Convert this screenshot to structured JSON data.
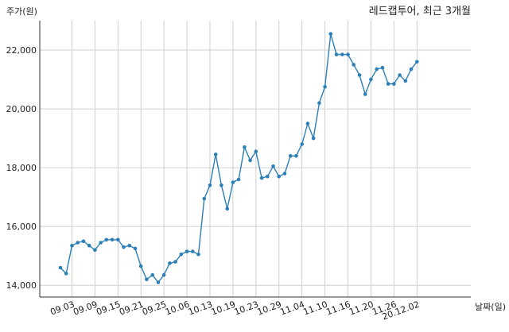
{
  "chart_data": {
    "type": "line",
    "title": "레드캡투어, 최근 3개월",
    "ylabel": "주가(원)",
    "xlabel": "날짜(일)",
    "ylim": [
      13600,
      23000
    ],
    "yticks": [
      14000,
      16000,
      18000,
      20000,
      22000
    ],
    "ytick_labels": [
      "14,000",
      "16,000",
      "18,000",
      "20,000",
      "22,000"
    ],
    "xtick_labels": [
      "09.03",
      "09.09",
      "09.15",
      "09.21",
      "09.25",
      "10.06",
      "10.13",
      "10.19",
      "10.23",
      "10.29",
      "11.04",
      "11.10",
      "11.16",
      "11.20",
      "11.26",
      "20.12.02"
    ],
    "xtick_index": [
      2,
      6,
      10,
      14,
      18,
      22,
      26,
      30,
      34,
      38,
      42,
      46,
      50,
      54,
      58,
      62
    ],
    "grid": true,
    "series": [
      {
        "color": "#2d7fb8",
        "values": [
          14600,
          14400,
          15350,
          15450,
          15500,
          15350,
          15200,
          15450,
          15550,
          15550,
          15550,
          15300,
          15350,
          15250,
          14650,
          14200,
          14350,
          14100,
          14350,
          14750,
          14800,
          15050,
          15150,
          15150,
          15050,
          16950,
          17400,
          18450,
          17400,
          16600,
          17500,
          17600,
          18700,
          18250,
          18550,
          17650,
          17700,
          18050,
          17700,
          17800,
          18400,
          18400,
          18800,
          19500,
          19000,
          20200,
          20750,
          22550,
          21850,
          21850,
          21850,
          21500,
          21150,
          20500,
          21000,
          21350,
          21400,
          20850,
          20850,
          21150,
          20950,
          21350,
          21600
        ]
      }
    ]
  }
}
